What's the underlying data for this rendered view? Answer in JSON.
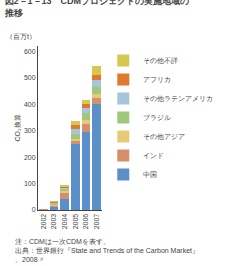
{
  "chart_data": {
    "type": "bar",
    "stacked": true,
    "title": "図2－1－13　CDMプロジェクトの実施地域の\n推移",
    "ylabel": "CO₂換算",
    "annotations": [
      "（百万t）",
      "注：CDMは一次CDMを表す。",
      "出典：世界銀行『State and Trends of the Carbon Market』",
      "。2008〃"
    ],
    "categories": [
      "2002",
      "2003",
      "2004",
      "2005",
      "2006",
      "2007"
    ],
    "series": [
      {
        "name": "中国",
        "color": "#5b8fc9",
        "values": [
          2,
          10,
          40,
          250,
          295,
          400
        ]
      },
      {
        "name": "インド",
        "color": "#d4906a",
        "values": [
          1,
          8,
          25,
          10,
          30,
          25
        ]
      },
      {
        "name": "その他アジア",
        "color": "#e8c97a",
        "values": [
          0,
          3,
          8,
          8,
          15,
          15
        ]
      },
      {
        "name": "ブラジル",
        "color": "#9fc87a",
        "values": [
          0,
          5,
          8,
          20,
          25,
          25
        ]
      },
      {
        "name": "その他ラテンアメリカ",
        "color": "#a8c4d8",
        "values": [
          0,
          3,
          5,
          20,
          20,
          25
        ]
      },
      {
        "name": "アフリカ",
        "color": "#e07830",
        "values": [
          0,
          2,
          2,
          15,
          15,
          20
        ]
      },
      {
        "name": "その他不詳",
        "color": "#d4c850",
        "values": [
          0,
          2,
          3,
          15,
          15,
          35
        ]
      }
    ],
    "ylim": [
      0,
      620
    ],
    "yticks": [
      0,
      100,
      200,
      300,
      400,
      500,
      600
    ],
    "grid": false,
    "legend": "right"
  }
}
